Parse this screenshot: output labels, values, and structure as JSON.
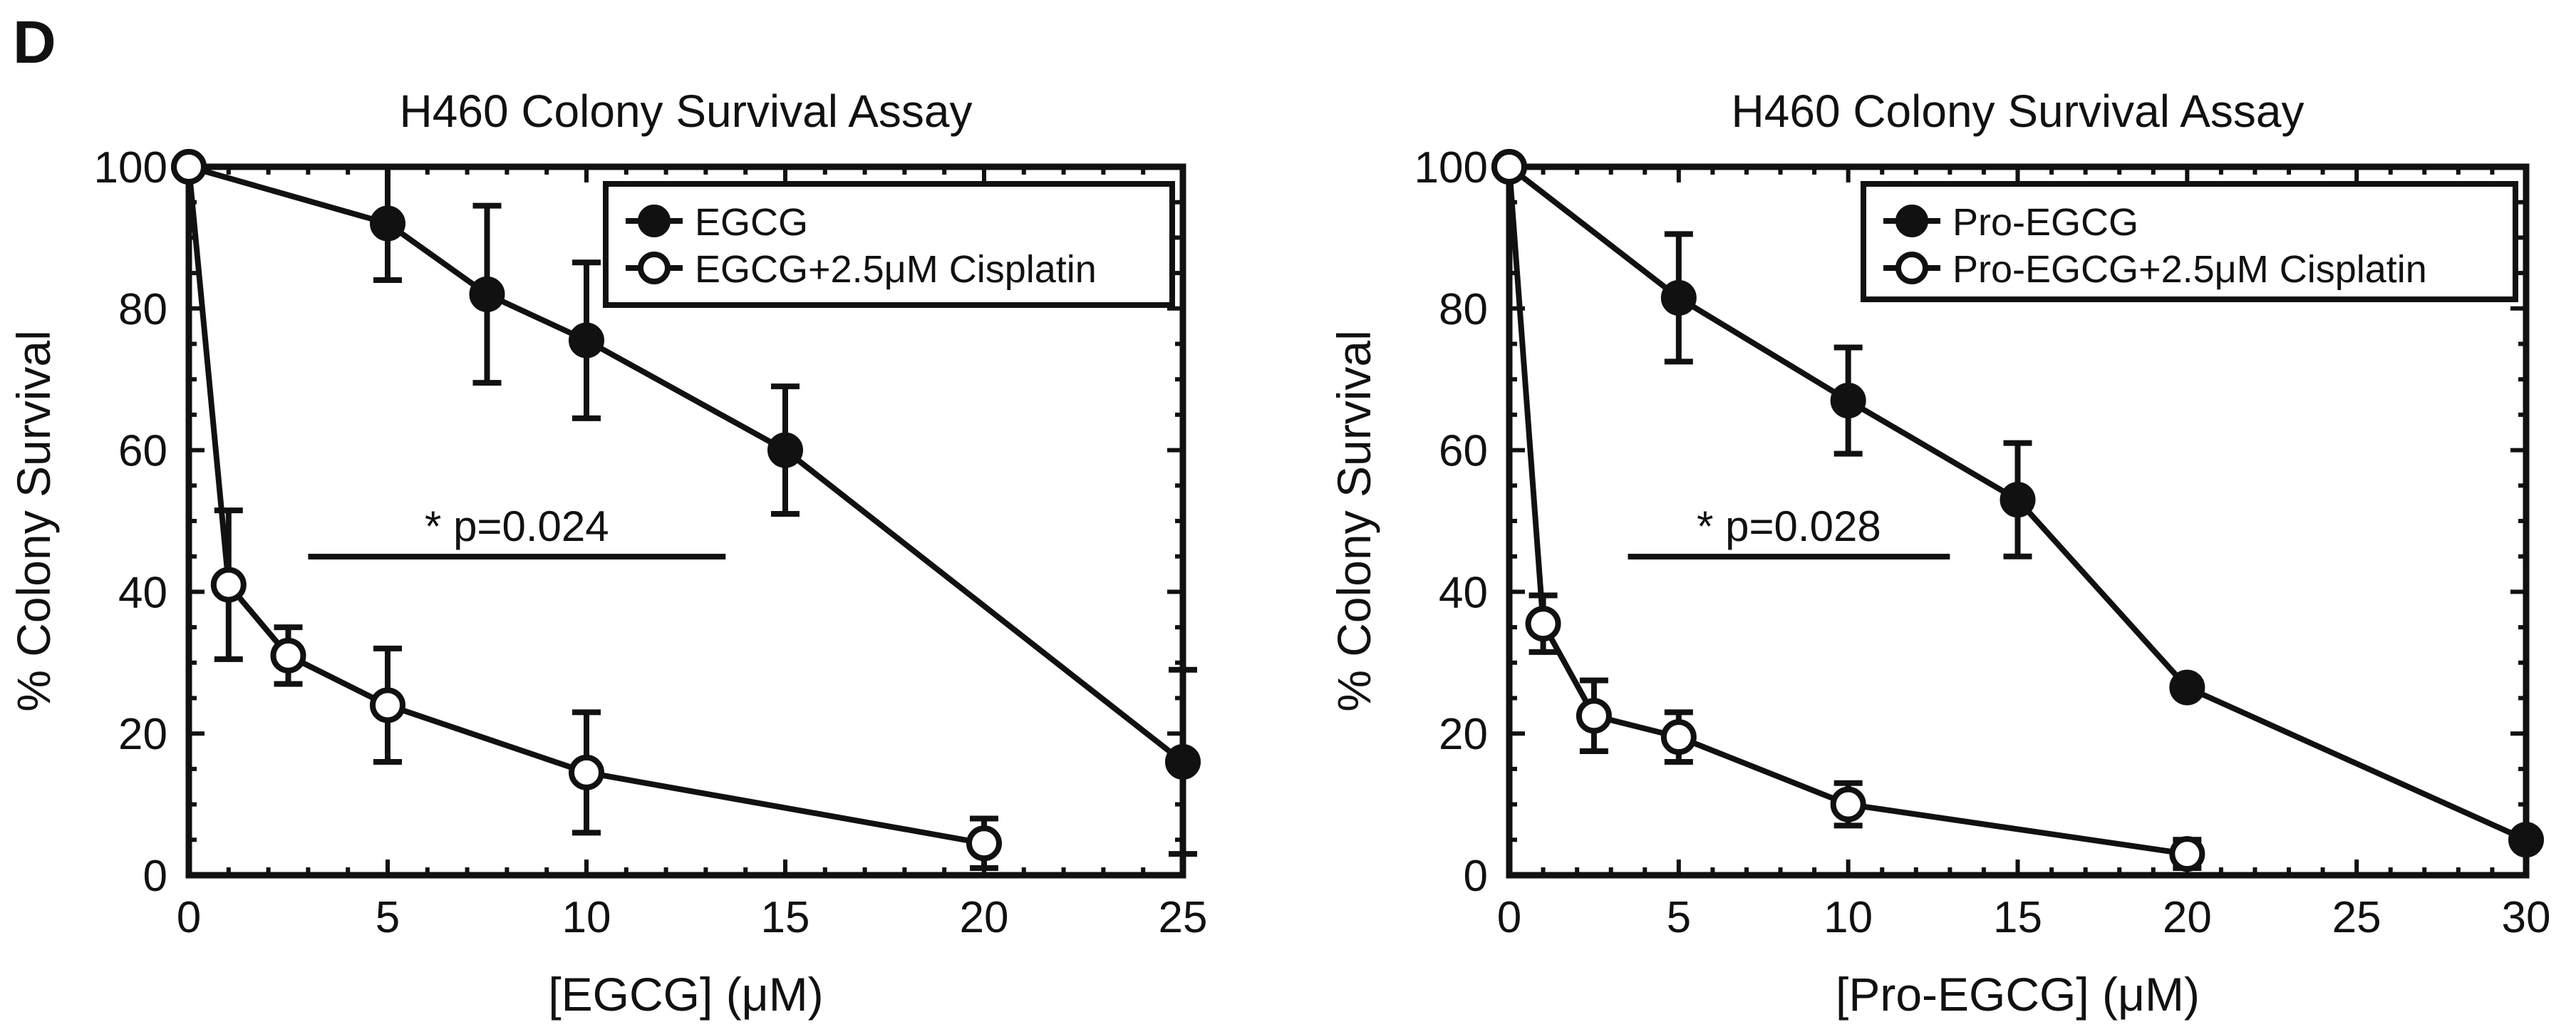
{
  "panel_label": "D",
  "chart_data": [
    {
      "type": "line",
      "title": "H460 Colony Survival Assay",
      "xlabel": "[EGCG] (μM)",
      "ylabel": "% Colony Survival",
      "xlim": [
        0,
        25
      ],
      "ylim": [
        0,
        100
      ],
      "xticks": [
        "0",
        "5",
        "10",
        "15",
        "20",
        "25"
      ],
      "yticks": [
        "0",
        "20",
        "40",
        "60",
        "80",
        "100"
      ],
      "grid": false,
      "legend_position": "top-right",
      "series": [
        {
          "name": "EGCG",
          "marker": "filled-circle",
          "points": [
            {
              "x": 0,
              "y": 100,
              "err": 0
            },
            {
              "x": 5,
              "y": 92,
              "err": 8
            },
            {
              "x": 7.5,
              "y": 82,
              "err": 12.5
            },
            {
              "x": 10,
              "y": 75.5,
              "err": 11
            },
            {
              "x": 15,
              "y": 60,
              "err": 9
            },
            {
              "x": 25,
              "y": 16,
              "err": 13
            }
          ]
        },
        {
          "name": "EGCG+2.5μM Cisplatin",
          "marker": "open-circle",
          "points": [
            {
              "x": 0,
              "y": 100,
              "err": 0
            },
            {
              "x": 1,
              "y": 41,
              "err": 10.5
            },
            {
              "x": 2.5,
              "y": 31,
              "err": 4
            },
            {
              "x": 5,
              "y": 24,
              "err": 8
            },
            {
              "x": 10,
              "y": 14.5,
              "err": 8.5
            },
            {
              "x": 20,
              "y": 4.5,
              "err": 3.5
            }
          ]
        }
      ],
      "significance": {
        "label": "* p=0.024",
        "x_from": 3,
        "x_to": 13.5,
        "y": 49
      }
    },
    {
      "type": "line",
      "title": "H460 Colony Survival Assay",
      "xlabel": "[Pro-EGCG] (μM)",
      "ylabel": "% Colony Survival",
      "xlim": [
        0,
        30
      ],
      "ylim": [
        0,
        100
      ],
      "xticks": [
        "0",
        "5",
        "10",
        "15",
        "20",
        "25",
        "30"
      ],
      "yticks": [
        "0",
        "20",
        "40",
        "60",
        "80",
        "100"
      ],
      "grid": false,
      "legend_position": "top-right",
      "series": [
        {
          "name": "Pro-EGCG",
          "marker": "filled-circle",
          "points": [
            {
              "x": 0,
              "y": 100,
              "err": 0
            },
            {
              "x": 5,
              "y": 81.5,
              "err": 9
            },
            {
              "x": 10,
              "y": 67,
              "err": 7.5
            },
            {
              "x": 15,
              "y": 53,
              "err": 8
            },
            {
              "x": 20,
              "y": 26.5,
              "err": 0
            },
            {
              "x": 30,
              "y": 5,
              "err": 0
            }
          ]
        },
        {
          "name": "Pro-EGCG+2.5μM Cisplatin",
          "marker": "open-circle",
          "points": [
            {
              "x": 0,
              "y": 100,
              "err": 0
            },
            {
              "x": 1,
              "y": 35.5,
              "err": 4
            },
            {
              "x": 2.5,
              "y": 22.5,
              "err": 5
            },
            {
              "x": 5,
              "y": 19.5,
              "err": 3.5
            },
            {
              "x": 10,
              "y": 10,
              "err": 3
            },
            {
              "x": 20,
              "y": 3,
              "err": 2
            }
          ]
        }
      ],
      "significance": {
        "label": "* p=0.028",
        "x_from": 3.5,
        "x_to": 13,
        "y": 49
      }
    }
  ]
}
